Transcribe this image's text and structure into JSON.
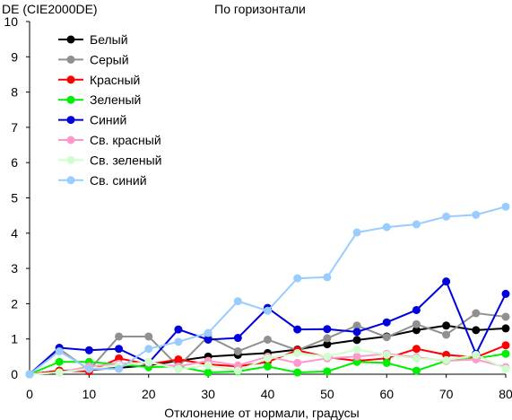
{
  "chart_data": {
    "type": "line",
    "title": "По горизонтали",
    "ylabel": "DE (CIE2000DE)",
    "xlabel": "Отклонение от нормали, градусы",
    "x": [
      0,
      5,
      10,
      15,
      20,
      25,
      30,
      35,
      40,
      45,
      50,
      55,
      60,
      65,
      70,
      75,
      80
    ],
    "xlim": [
      0,
      80
    ],
    "ylim": [
      0,
      10
    ],
    "xticks": [
      0,
      10,
      20,
      30,
      40,
      50,
      60,
      70,
      80
    ],
    "yticks": [
      0,
      1,
      2,
      3,
      4,
      5,
      6,
      7,
      8,
      9,
      10
    ],
    "grid": false,
    "legend_position": "top-left",
    "series": [
      {
        "name": "Белый",
        "color": "#000000",
        "values": [
          0,
          0.1,
          0.12,
          0.18,
          0.25,
          0.38,
          0.5,
          0.55,
          0.6,
          0.7,
          0.85,
          0.97,
          1.07,
          1.25,
          1.38,
          1.25,
          1.3
        ]
      },
      {
        "name": "Серый",
        "color": "#909090",
        "values": [
          0,
          0.72,
          0.12,
          1.07,
          1.07,
          0.22,
          1.07,
          0.65,
          0.98,
          0.68,
          1.02,
          1.38,
          1.05,
          1.42,
          1.12,
          1.73,
          1.63
        ]
      },
      {
        "name": "Красный",
        "color": "#ff0000",
        "values": [
          0,
          0.1,
          0.08,
          0.45,
          0.28,
          0.42,
          0.28,
          0.22,
          0.35,
          0.68,
          0.48,
          0.38,
          0.45,
          0.72,
          0.55,
          0.48,
          0.82
        ]
      },
      {
        "name": "Зеленый",
        "color": "#00ee00",
        "values": [
          0,
          0.35,
          0.35,
          0.28,
          0.2,
          0.22,
          0.05,
          0.08,
          0.22,
          0.05,
          0.08,
          0.35,
          0.32,
          0.1,
          0.38,
          0.45,
          0.58
        ]
      },
      {
        "name": "Синий",
        "color": "#0000dd",
        "values": [
          0,
          0.75,
          0.68,
          0.72,
          0.32,
          1.27,
          0.98,
          1.03,
          1.88,
          1.27,
          1.28,
          1.2,
          1.47,
          1.82,
          2.63,
          0.58,
          2.28
        ]
      },
      {
        "name": "Св. красный",
        "color": "#ff99cc",
        "values": [
          0,
          0.05,
          0.22,
          0.3,
          0.32,
          0.22,
          0.38,
          0.25,
          0.5,
          0.32,
          0.45,
          0.5,
          0.58,
          0.48,
          0.38,
          0.42,
          0.2
        ]
      },
      {
        "name": "Св. зеленый",
        "color": "#ccffcc",
        "values": [
          0,
          0.05,
          0.15,
          0.25,
          0.35,
          0.15,
          0.25,
          0.1,
          0.45,
          0.6,
          0.5,
          0.7,
          0.55,
          0.45,
          0.4,
          0.55,
          0.15
        ]
      },
      {
        "name": "Св. синий",
        "color": "#99ccff",
        "values": [
          0,
          0.65,
          0.15,
          0.15,
          0.72,
          0.92,
          1.17,
          2.07,
          1.8,
          2.72,
          2.75,
          4.02,
          4.17,
          4.25,
          4.47,
          4.52,
          4.75
        ]
      }
    ]
  }
}
